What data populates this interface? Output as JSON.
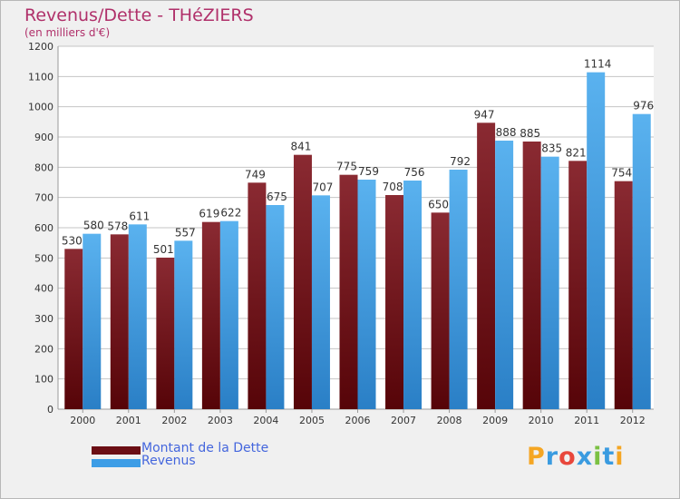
{
  "chart_data": {
    "type": "bar",
    "title": "Revenus/Dette - THéZIERS",
    "subtitle": "(en milliers d'€)",
    "categories": [
      "2000",
      "2001",
      "2002",
      "2003",
      "2004",
      "2005",
      "2006",
      "2007",
      "2008",
      "2009",
      "2010",
      "2011",
      "2012"
    ],
    "series": [
      {
        "name": "Montant de la Dette",
        "color": "#6b0e14",
        "values": [
          530,
          578,
          501,
          619,
          749,
          841,
          775,
          708,
          650,
          947,
          885,
          821,
          754
        ]
      },
      {
        "name": "Revenus",
        "color": "#3d9de6",
        "values": [
          580,
          611,
          557,
          622,
          675,
          707,
          759,
          756,
          792,
          888,
          835,
          1114,
          976
        ]
      }
    ],
    "ylim": [
      0,
      1200
    ],
    "yticks": [
      0,
      100,
      200,
      300,
      400,
      500,
      600,
      700,
      800,
      900,
      1000,
      1100,
      1200
    ],
    "grid": true,
    "legend": "bottom-left"
  },
  "logo": {
    "letters": [
      "P",
      "r",
      "o",
      "x",
      "i",
      "t",
      "i"
    ],
    "colors": [
      "#f5a623",
      "#3a9be0",
      "#e8473c",
      "#3a9be0",
      "#7bc143",
      "#3a9be0",
      "#f5a623"
    ]
  }
}
